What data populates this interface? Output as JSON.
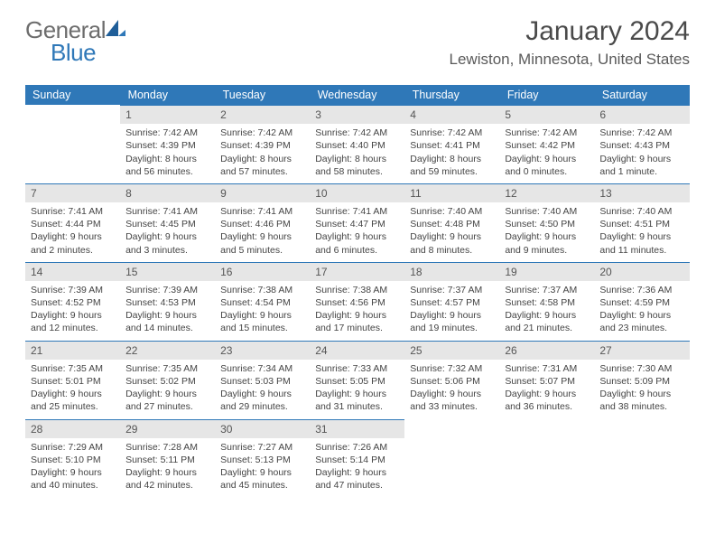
{
  "logo": {
    "text1": "General",
    "text2": "Blue"
  },
  "title": "January 2024",
  "location": "Lewiston, Minnesota, United States",
  "colors": {
    "accent": "#2f78b8",
    "dayBar": "#e6e6e6",
    "text": "#3a3a3a"
  },
  "dow": [
    "Sunday",
    "Monday",
    "Tuesday",
    "Wednesday",
    "Thursday",
    "Friday",
    "Saturday"
  ],
  "weeks": [
    [
      null,
      {
        "n": "1",
        "sr": "7:42 AM",
        "ss": "4:39 PM",
        "dl": "8 hours and 56 minutes."
      },
      {
        "n": "2",
        "sr": "7:42 AM",
        "ss": "4:39 PM",
        "dl": "8 hours and 57 minutes."
      },
      {
        "n": "3",
        "sr": "7:42 AM",
        "ss": "4:40 PM",
        "dl": "8 hours and 58 minutes."
      },
      {
        "n": "4",
        "sr": "7:42 AM",
        "ss": "4:41 PM",
        "dl": "8 hours and 59 minutes."
      },
      {
        "n": "5",
        "sr": "7:42 AM",
        "ss": "4:42 PM",
        "dl": "9 hours and 0 minutes."
      },
      {
        "n": "6",
        "sr": "7:42 AM",
        "ss": "4:43 PM",
        "dl": "9 hours and 1 minute."
      }
    ],
    [
      {
        "n": "7",
        "sr": "7:41 AM",
        "ss": "4:44 PM",
        "dl": "9 hours and 2 minutes."
      },
      {
        "n": "8",
        "sr": "7:41 AM",
        "ss": "4:45 PM",
        "dl": "9 hours and 3 minutes."
      },
      {
        "n": "9",
        "sr": "7:41 AM",
        "ss": "4:46 PM",
        "dl": "9 hours and 5 minutes."
      },
      {
        "n": "10",
        "sr": "7:41 AM",
        "ss": "4:47 PM",
        "dl": "9 hours and 6 minutes."
      },
      {
        "n": "11",
        "sr": "7:40 AM",
        "ss": "4:48 PM",
        "dl": "9 hours and 8 minutes."
      },
      {
        "n": "12",
        "sr": "7:40 AM",
        "ss": "4:50 PM",
        "dl": "9 hours and 9 minutes."
      },
      {
        "n": "13",
        "sr": "7:40 AM",
        "ss": "4:51 PM",
        "dl": "9 hours and 11 minutes."
      }
    ],
    [
      {
        "n": "14",
        "sr": "7:39 AM",
        "ss": "4:52 PM",
        "dl": "9 hours and 12 minutes."
      },
      {
        "n": "15",
        "sr": "7:39 AM",
        "ss": "4:53 PM",
        "dl": "9 hours and 14 minutes."
      },
      {
        "n": "16",
        "sr": "7:38 AM",
        "ss": "4:54 PM",
        "dl": "9 hours and 15 minutes."
      },
      {
        "n": "17",
        "sr": "7:38 AM",
        "ss": "4:56 PM",
        "dl": "9 hours and 17 minutes."
      },
      {
        "n": "18",
        "sr": "7:37 AM",
        "ss": "4:57 PM",
        "dl": "9 hours and 19 minutes."
      },
      {
        "n": "19",
        "sr": "7:37 AM",
        "ss": "4:58 PM",
        "dl": "9 hours and 21 minutes."
      },
      {
        "n": "20",
        "sr": "7:36 AM",
        "ss": "4:59 PM",
        "dl": "9 hours and 23 minutes."
      }
    ],
    [
      {
        "n": "21",
        "sr": "7:35 AM",
        "ss": "5:01 PM",
        "dl": "9 hours and 25 minutes."
      },
      {
        "n": "22",
        "sr": "7:35 AM",
        "ss": "5:02 PM",
        "dl": "9 hours and 27 minutes."
      },
      {
        "n": "23",
        "sr": "7:34 AM",
        "ss": "5:03 PM",
        "dl": "9 hours and 29 minutes."
      },
      {
        "n": "24",
        "sr": "7:33 AM",
        "ss": "5:05 PM",
        "dl": "9 hours and 31 minutes."
      },
      {
        "n": "25",
        "sr": "7:32 AM",
        "ss": "5:06 PM",
        "dl": "9 hours and 33 minutes."
      },
      {
        "n": "26",
        "sr": "7:31 AM",
        "ss": "5:07 PM",
        "dl": "9 hours and 36 minutes."
      },
      {
        "n": "27",
        "sr": "7:30 AM",
        "ss": "5:09 PM",
        "dl": "9 hours and 38 minutes."
      }
    ],
    [
      {
        "n": "28",
        "sr": "7:29 AM",
        "ss": "5:10 PM",
        "dl": "9 hours and 40 minutes."
      },
      {
        "n": "29",
        "sr": "7:28 AM",
        "ss": "5:11 PM",
        "dl": "9 hours and 42 minutes."
      },
      {
        "n": "30",
        "sr": "7:27 AM",
        "ss": "5:13 PM",
        "dl": "9 hours and 45 minutes."
      },
      {
        "n": "31",
        "sr": "7:26 AM",
        "ss": "5:14 PM",
        "dl": "9 hours and 47 minutes."
      },
      null,
      null,
      null
    ]
  ],
  "labels": {
    "sunrise": "Sunrise: ",
    "sunset": "Sunset: ",
    "daylight": "Daylight: "
  }
}
